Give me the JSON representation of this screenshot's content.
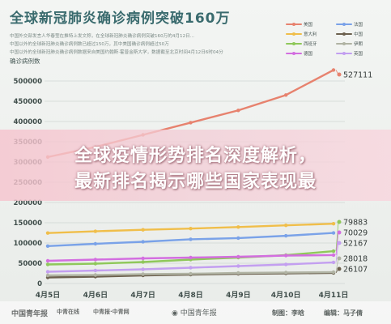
{
  "header": {
    "title": "全球新冠肺炎确诊病例突破160万",
    "subtitle_1": "中国外交部发言人华春莹在推特上发文称，在全球新冠肺炎确诊病例突破160万的4月12日...",
    "subtitle_2": "中国以外的全球新冠肺炎确诊病例数已超过150万，其中美国确诊病例超过50万",
    "subtitle_3": "中国以外的全球新冠肺炎确诊病例数据来自美国约翰斯·霍普金斯大学，数据截至北京时间4月12日6时04分"
  },
  "banner": {
    "line1": "全球疫情形势排名深度解析，",
    "line2": "最新排名揭示哪些国家表现最"
  },
  "footer": {
    "logo_left_1": "中国青年报",
    "logo_left_2": "中青在线",
    "logo_left_3": "中青报·中青网",
    "logo_center": "中国青年报",
    "credit_1": "制图：李晗",
    "credit_2": "编辑：马子倩"
  },
  "colors": {
    "usa": "#e7826e",
    "italy": "#f0be4a",
    "spain": "#8fc85a",
    "germany": "#d36ee0",
    "france": "#7aa2e8",
    "china": "#6c604e",
    "iran": "#b0b3a3",
    "uk": "#c39ff0"
  },
  "chart_data": {
    "type": "line",
    "title": "全球新冠肺炎确诊病例突破160万",
    "ylabel": "确诊病例数",
    "xlabel": "",
    "categories": [
      "4月5日",
      "4月6日",
      "4月7日",
      "4月8日",
      "4月9日",
      "4月10日",
      "4月11日"
    ],
    "ylim": [
      0,
      500000
    ],
    "yticks": [
      "0",
      "50000",
      "100000",
      "150000",
      "200000",
      "250000",
      "300000",
      "350000",
      "400000",
      "450000",
      "500000"
    ],
    "grid": true,
    "legend": "top-right",
    "series": [
      {
        "name": "美国",
        "color_key": "usa",
        "values": [
          312237,
          337072,
          367004,
          397121,
          427460,
          465329,
          527111
        ]
      },
      {
        "name": "意大利",
        "color_key": "italy",
        "values": [
          124632,
          128948,
          132547,
          135586,
          139422,
          143626,
          147577
        ]
      },
      {
        "name": "西班牙",
        "color_key": "spain",
        "values": [
          47000,
          49000,
          53000,
          59000,
          64000,
          70000,
          79883
        ]
      },
      {
        "name": "德国",
        "color_key": "germany",
        "values": [
          56000,
          59000,
          62000,
          64000,
          66000,
          69000,
          70029
        ]
      },
      {
        "name": "法国",
        "color_key": "france",
        "values": [
          92472,
          98010,
          103000,
          109069,
          112065,
          117749,
          124869
        ]
      },
      {
        "name": "中国",
        "color_key": "china",
        "values": [
          15000,
          17000,
          20000,
          22000,
          24000,
          25000,
          26107
        ]
      },
      {
        "name": "伊朗",
        "color_key": "iran",
        "values": [
          20000,
          21000,
          23000,
          24000,
          26000,
          27000,
          28018
        ]
      },
      {
        "name": "英国",
        "color_key": "uk",
        "values": [
          29000,
          32000,
          35000,
          39000,
          43000,
          47000,
          52167
        ]
      }
    ],
    "end_labels": [
      "527111",
      "79883",
      "70029",
      "52167",
      "28018",
      "26107"
    ]
  }
}
